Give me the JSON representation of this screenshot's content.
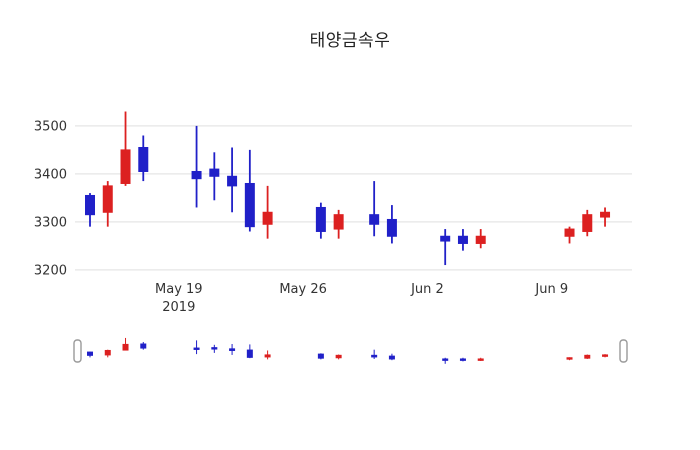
{
  "chart_data": {
    "type": "candlestick",
    "title": "태양금속우",
    "xlabel": "",
    "ylabel": "",
    "ylim": [
      3183,
      3554
    ],
    "yticks": [
      3200,
      3300,
      3400,
      3500
    ],
    "xticks": [
      {
        "slot": 5,
        "label": "May 19",
        "sublabel": "2019"
      },
      {
        "slot": 12,
        "label": "May 26",
        "sublabel": ""
      },
      {
        "slot": 19,
        "label": "Jun 2",
        "sublabel": ""
      },
      {
        "slot": 26,
        "label": "Jun 9",
        "sublabel": ""
      }
    ],
    "grid": "horizontal",
    "legend": "none",
    "rangeslider": true,
    "candles": [
      {
        "date": "2019-05-14",
        "slot": 0,
        "open": 3355,
        "high": 3360,
        "low": 3290,
        "close": 3315
      },
      {
        "date": "2019-05-15",
        "slot": 1,
        "open": 3320,
        "high": 3385,
        "low": 3290,
        "close": 3375
      },
      {
        "date": "2019-05-16",
        "slot": 2,
        "open": 3380,
        "high": 3530,
        "low": 3375,
        "close": 3450
      },
      {
        "date": "2019-05-17",
        "slot": 3,
        "open": 3455,
        "high": 3480,
        "low": 3385,
        "close": 3405
      },
      {
        "date": "2019-05-20",
        "slot": 6,
        "open": 3405,
        "high": 3500,
        "low": 3330,
        "close": 3390
      },
      {
        "date": "2019-05-21",
        "slot": 7,
        "open": 3410,
        "high": 3445,
        "low": 3345,
        "close": 3395
      },
      {
        "date": "2019-05-22",
        "slot": 8,
        "open": 3395,
        "high": 3455,
        "low": 3320,
        "close": 3375
      },
      {
        "date": "2019-05-23",
        "slot": 9,
        "open": 3380,
        "high": 3450,
        "low": 3280,
        "close": 3290
      },
      {
        "date": "2019-05-24",
        "slot": 10,
        "open": 3295,
        "high": 3375,
        "low": 3265,
        "close": 3320
      },
      {
        "date": "2019-05-27",
        "slot": 13,
        "open": 3330,
        "high": 3340,
        "low": 3265,
        "close": 3280
      },
      {
        "date": "2019-05-28",
        "slot": 14,
        "open": 3285,
        "high": 3325,
        "low": 3265,
        "close": 3315
      },
      {
        "date": "2019-05-30",
        "slot": 16,
        "open": 3315,
        "high": 3385,
        "low": 3270,
        "close": 3295
      },
      {
        "date": "2019-05-31",
        "slot": 17,
        "open": 3305,
        "high": 3335,
        "low": 3255,
        "close": 3270
      },
      {
        "date": "2019-06-03",
        "slot": 20,
        "open": 3270,
        "high": 3285,
        "low": 3210,
        "close": 3260
      },
      {
        "date": "2019-06-04",
        "slot": 21,
        "open": 3270,
        "high": 3285,
        "low": 3240,
        "close": 3255
      },
      {
        "date": "2019-06-05",
        "slot": 22,
        "open": 3255,
        "high": 3285,
        "low": 3245,
        "close": 3270
      },
      {
        "date": "2019-06-10",
        "slot": 27,
        "open": 3270,
        "high": 3290,
        "low": 3255,
        "close": 3285
      },
      {
        "date": "2019-06-11",
        "slot": 28,
        "open": 3280,
        "high": 3325,
        "low": 3270,
        "close": 3315
      },
      {
        "date": "2019-06-12",
        "slot": 29,
        "open": 3310,
        "high": 3330,
        "low": 3290,
        "close": 3320
      }
    ]
  },
  "colors": {
    "up": "#dc2020",
    "down": "#2020c8",
    "grid": "#e6e6e6",
    "axis_text": "#333333",
    "title_text": "#222222",
    "handle_border": "#999999",
    "background": "#ffffff"
  }
}
